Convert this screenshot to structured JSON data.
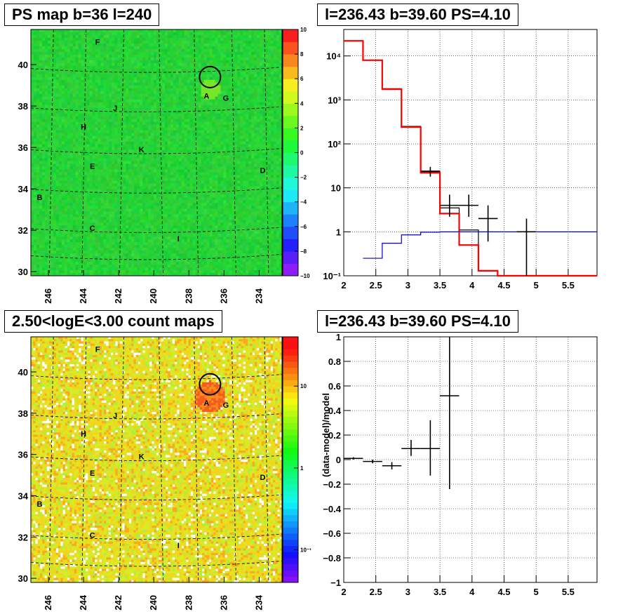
{
  "titles": {
    "ps_map": "PS map b=36 l=240",
    "spectrum": "l=236.43 b=39.60 PS=4.10",
    "count_map": "2.50<logE<3.00 count maps",
    "residual": "l=236.43 b=39.60 PS=4.10"
  },
  "chart_data": [
    {
      "type": "heatmap",
      "title": "PS map b=36 l=240",
      "xlim": [
        247,
        232.7
      ],
      "ylim": [
        29.8,
        41.7
      ],
      "xticks": [
        "246",
        "244",
        "242",
        "240",
        "238",
        "236",
        "234"
      ],
      "yticks": [
        "30",
        "32",
        "34",
        "36",
        "38",
        "40"
      ],
      "colorbar_ticks": [
        "10",
        "8",
        "6",
        "4",
        "2",
        "0",
        "−2",
        "−4",
        "−6",
        "−8",
        "−10"
      ],
      "colorbar_range": [
        -10,
        10
      ],
      "source_labels": [
        {
          "label": "F",
          "l": 243.2,
          "b": 41.1
        },
        {
          "label": "A",
          "l": 237.0,
          "b": 38.5
        },
        {
          "label": "G",
          "l": 235.9,
          "b": 38.4
        },
        {
          "label": "J",
          "l": 242.2,
          "b": 37.9
        },
        {
          "label": "H",
          "l": 244.0,
          "b": 37.0
        },
        {
          "label": "K",
          "l": 240.7,
          "b": 35.9
        },
        {
          "label": "E",
          "l": 243.5,
          "b": 35.1
        },
        {
          "label": "D",
          "l": 233.8,
          "b": 34.9
        },
        {
          "label": "B",
          "l": 246.5,
          "b": 33.6
        },
        {
          "label": "C",
          "l": 243.5,
          "b": 32.1
        },
        {
          "label": "I",
          "l": 238.6,
          "b": 31.6
        }
      ],
      "circle": {
        "l": 236.8,
        "b": 39.4
      }
    },
    {
      "type": "line",
      "title": "l=236.43 b=39.60 PS=4.10",
      "xlim": [
        2,
        5.95
      ],
      "ylog": true,
      "ylim": [
        0.1,
        40000
      ],
      "xticks": [
        "2",
        "2.5",
        "3",
        "3.5",
        "4",
        "4.5",
        "5",
        "5.5"
      ],
      "yticks": [
        "10⁻¹",
        "1",
        "10",
        "10²",
        "10³",
        "10⁴"
      ],
      "series": [
        {
          "color": "#000000",
          "edges": [
            2,
            2.3,
            2.6,
            2.9,
            3.2,
            3.5,
            3.8,
            4.1,
            4.4,
            5.95
          ],
          "values": [
            22000,
            8000,
            1800,
            250,
            23,
            3.5,
            1.1,
            0.13,
            0.1
          ]
        },
        {
          "color": "#ff0000",
          "edges": [
            2,
            2.3,
            2.6,
            2.9,
            3.2,
            3.5,
            3.8,
            4.1,
            4.4,
            5.95
          ],
          "values": [
            22000,
            8000,
            1750,
            240,
            22,
            2.6,
            0.5,
            0.13,
            0.1
          ]
        },
        {
          "color": "#0000cc",
          "edges": [
            2.3,
            2.6,
            2.9,
            3.2,
            3.5,
            5.95
          ],
          "values": [
            0.25,
            0.55,
            0.85,
            0.98,
            1.0
          ]
        }
      ],
      "points": [
        {
          "x": 3.35,
          "y": 24,
          "xerr": 0.15,
          "ylo": 18,
          "yhi": 30
        },
        {
          "x": 3.65,
          "y": 4,
          "xerr": 0.15,
          "ylo": 2.2,
          "yhi": 7
        },
        {
          "x": 3.95,
          "y": 4,
          "xerr": 0.15,
          "ylo": 2.2,
          "yhi": 7
        },
        {
          "x": 4.25,
          "y": 2,
          "xerr": 0.15,
          "ylo": 0.6,
          "yhi": 4
        },
        {
          "x": 4.85,
          "y": 1,
          "xerr": 0.15,
          "ylo": 0.1,
          "yhi": 2
        }
      ]
    },
    {
      "type": "heatmap",
      "title": "2.50<logE<3.00 count maps",
      "xlim": [
        247,
        232.7
      ],
      "ylim": [
        29.8,
        41.7
      ],
      "xticks": [
        "246",
        "244",
        "242",
        "240",
        "238",
        "236",
        "234"
      ],
      "yticks": [
        "30",
        "32",
        "34",
        "36",
        "38",
        "40"
      ],
      "colorbar_ticks": [
        "10",
        "1",
        "10⁻¹"
      ],
      "colorbar_log": true,
      "colorbar_range": [
        0.04,
        40
      ],
      "source_labels": [
        {
          "label": "F",
          "l": 243.2,
          "b": 41.1
        },
        {
          "label": "A",
          "l": 237.0,
          "b": 38.5
        },
        {
          "label": "G",
          "l": 235.9,
          "b": 38.4
        },
        {
          "label": "J",
          "l": 242.2,
          "b": 37.9
        },
        {
          "label": "H",
          "l": 244.0,
          "b": 37.0
        },
        {
          "label": "K",
          "l": 240.7,
          "b": 35.9
        },
        {
          "label": "E",
          "l": 243.5,
          "b": 35.1
        },
        {
          "label": "D",
          "l": 233.8,
          "b": 34.9
        },
        {
          "label": "B",
          "l": 246.5,
          "b": 33.6
        },
        {
          "label": "C",
          "l": 243.5,
          "b": 32.1
        },
        {
          "label": "I",
          "l": 238.6,
          "b": 31.6
        }
      ],
      "circle": {
        "l": 236.8,
        "b": 39.4
      }
    },
    {
      "type": "scatter",
      "title": "l=236.43 b=39.60 PS=4.10",
      "ylabel": "(data-model)/model",
      "xlim": [
        2,
        5.95
      ],
      "ylim": [
        -1,
        1
      ],
      "xticks": [
        "2",
        "2.5",
        "3",
        "3.5",
        "4",
        "4.5",
        "5",
        "5.5"
      ],
      "yticks": [
        "−1",
        "−0.8",
        "−0.6",
        "−0.4",
        "−0.2",
        "0",
        "0.2",
        "0.4",
        "0.6",
        "0.8",
        "1"
      ],
      "points": [
        {
          "x": 2.15,
          "y": 0.01,
          "xerr": 0.15,
          "ylo": 0.0,
          "yhi": 0.02
        },
        {
          "x": 2.45,
          "y": -0.015,
          "xerr": 0.15,
          "ylo": -0.03,
          "yhi": 0.0
        },
        {
          "x": 2.75,
          "y": -0.05,
          "xerr": 0.15,
          "ylo": -0.08,
          "yhi": -0.02
        },
        {
          "x": 3.05,
          "y": 0.09,
          "xerr": 0.15,
          "ylo": 0.03,
          "yhi": 0.16
        },
        {
          "x": 3.35,
          "y": 0.09,
          "xerr": 0.15,
          "ylo": -0.13,
          "yhi": 0.32
        },
        {
          "x": 3.65,
          "y": 0.52,
          "xerr": 0.15,
          "ylo": -0.24,
          "yhi": 1.0
        }
      ]
    }
  ]
}
